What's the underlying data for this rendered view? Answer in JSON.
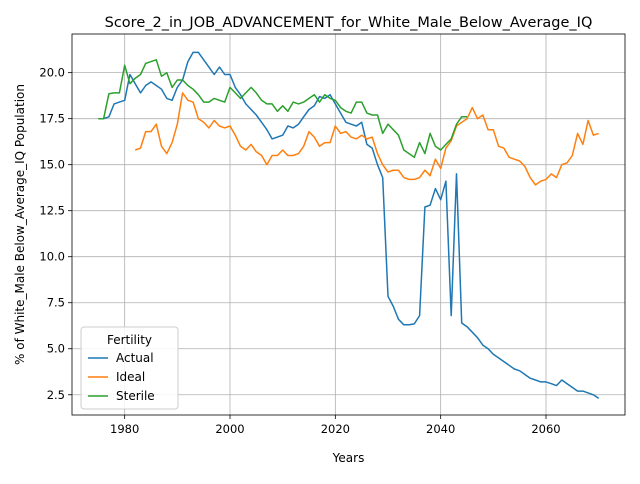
{
  "chart_data": {
    "type": "line",
    "title": "Score_2_in_JOB_ADVANCEMENT_for_White_Male_Below_Average_IQ",
    "xlabel": "Years",
    "ylabel": "% of White_Male Below_Average_IQ Population",
    "xlim": [
      1970,
      2075
    ],
    "ylim": [
      1.4,
      22.1
    ],
    "xticks": [
      1980,
      2000,
      2020,
      2040,
      2060
    ],
    "yticks": [
      2.5,
      5.0,
      7.5,
      10.0,
      12.5,
      15.0,
      17.5,
      20.0
    ],
    "grid": true,
    "legend": {
      "title": "Fertility",
      "position": "lower-left"
    },
    "series": [
      {
        "name": "Actual",
        "color": "#1f77b4",
        "x": [
          1976,
          1977,
          1978,
          1979,
          1980,
          1981,
          1982,
          1983,
          1984,
          1985,
          1986,
          1987,
          1988,
          1989,
          1990,
          1991,
          1992,
          1993,
          1994,
          1995,
          1996,
          1997,
          1998,
          1999,
          2000,
          2001,
          2002,
          2003,
          2004,
          2005,
          2006,
          2007,
          2008,
          2009,
          2010,
          2011,
          2012,
          2013,
          2014,
          2015,
          2016,
          2017,
          2018,
          2019,
          2020,
          2021,
          2022,
          2023,
          2024,
          2025,
          2026,
          2027,
          2028,
          2029,
          2030,
          2031,
          2032,
          2033,
          2034,
          2035,
          2036,
          2037,
          2038,
          2039,
          2040,
          2041,
          2042,
          2043,
          2044,
          2045,
          2046,
          2047,
          2048,
          2049,
          2050,
          2051,
          2052,
          2053,
          2054,
          2055,
          2056,
          2057,
          2058,
          2059,
          2060,
          2061,
          2062,
          2063,
          2064,
          2065,
          2066,
          2067,
          2068,
          2069,
          2070
        ],
        "y": [
          17.5,
          17.6,
          18.3,
          18.4,
          18.5,
          19.9,
          19.4,
          18.9,
          19.3,
          19.5,
          19.3,
          19.1,
          18.6,
          18.5,
          19.2,
          19.6,
          20.6,
          21.1,
          21.1,
          20.7,
          20.3,
          19.9,
          20.3,
          19.9,
          19.9,
          19.2,
          18.8,
          18.3,
          18.0,
          17.7,
          17.3,
          16.9,
          16.4,
          16.5,
          16.6,
          17.1,
          17.0,
          17.2,
          17.6,
          18.0,
          18.2,
          18.7,
          18.6,
          18.8,
          18.3,
          17.8,
          17.3,
          17.2,
          17.1,
          17.3,
          16.1,
          15.9,
          15.0,
          14.3,
          7.85,
          7.3,
          6.6,
          6.3,
          6.3,
          6.35,
          6.8,
          12.7,
          12.8,
          13.7,
          13.1,
          14.1,
          6.8,
          14.5,
          6.4,
          6.2,
          5.9,
          5.6,
          5.2,
          5.0,
          4.7,
          4.5,
          4.3,
          4.1,
          3.9,
          3.8,
          3.6,
          3.4,
          3.3,
          3.2,
          3.2,
          3.1,
          3.0,
          3.3,
          3.1,
          2.9,
          2.7,
          2.7,
          2.6,
          2.5,
          2.3
        ]
      },
      {
        "name": "Ideal",
        "color": "#ff7f0e",
        "x": [
          1982,
          1983,
          1984,
          1985,
          1986,
          1987,
          1988,
          1989,
          1990,
          1991,
          1992,
          1993,
          1994,
          1995,
          1996,
          1997,
          1998,
          1999,
          2000,
          2001,
          2002,
          2003,
          2004,
          2005,
          2006,
          2007,
          2008,
          2009,
          2010,
          2011,
          2012,
          2013,
          2014,
          2015,
          2016,
          2017,
          2018,
          2019,
          2020,
          2021,
          2022,
          2023,
          2024,
          2025,
          2026,
          2027,
          2028,
          2029,
          2030,
          2031,
          2032,
          2033,
          2034,
          2035,
          2036,
          2037,
          2038,
          2039,
          2040,
          2041,
          2042,
          2043,
          2044,
          2045,
          2046,
          2047,
          2048,
          2049,
          2050,
          2051,
          2052,
          2053,
          2054,
          2055,
          2056,
          2057,
          2058,
          2059,
          2060,
          2061,
          2062,
          2063,
          2064,
          2065,
          2066,
          2067,
          2068,
          2069,
          2070
        ],
        "y": [
          15.8,
          15.9,
          16.8,
          16.8,
          17.2,
          16.0,
          15.6,
          16.2,
          17.2,
          18.9,
          18.5,
          18.4,
          17.5,
          17.3,
          17.0,
          17.4,
          17.1,
          17.0,
          17.1,
          16.6,
          16.0,
          15.8,
          16.1,
          15.7,
          15.5,
          15.0,
          15.5,
          15.5,
          15.8,
          15.5,
          15.5,
          15.6,
          16.0,
          16.8,
          16.5,
          16.0,
          16.2,
          16.2,
          17.1,
          16.7,
          16.8,
          16.5,
          16.4,
          16.6,
          16.4,
          16.5,
          15.6,
          15.0,
          14.6,
          14.7,
          14.7,
          14.3,
          14.2,
          14.2,
          14.3,
          14.7,
          14.4,
          15.3,
          14.8,
          15.9,
          16.3,
          17.1,
          17.3,
          17.5,
          18.1,
          17.5,
          17.7,
          16.9,
          16.9,
          16.0,
          15.9,
          15.4,
          15.3,
          15.2,
          14.9,
          14.3,
          13.9,
          14.1,
          14.2,
          14.5,
          14.3,
          15.0,
          15.1,
          15.5,
          16.7,
          16.1,
          17.4,
          16.6,
          16.7
        ]
      },
      {
        "name": "Sterile",
        "color": "#2ca02c",
        "x": [
          1975,
          1976,
          1977,
          1978,
          1979,
          1980,
          1981,
          1982,
          1983,
          1984,
          1985,
          1986,
          1987,
          1988,
          1989,
          1990,
          1991,
          1992,
          1993,
          1994,
          1995,
          1996,
          1997,
          1998,
          1999,
          2000,
          2001,
          2002,
          2003,
          2004,
          2005,
          2006,
          2007,
          2008,
          2009,
          2010,
          2011,
          2012,
          2013,
          2014,
          2015,
          2016,
          2017,
          2018,
          2019,
          2020,
          2021,
          2022,
          2023,
          2024,
          2025,
          2026,
          2027,
          2028,
          2029,
          2030,
          2031,
          2032,
          2033,
          2034,
          2035,
          2036,
          2037,
          2038,
          2039,
          2040,
          2041,
          2042,
          2043,
          2044,
          2045
        ],
        "y": [
          17.5,
          17.5,
          18.85,
          18.9,
          18.9,
          20.4,
          19.4,
          19.7,
          19.9,
          20.5,
          20.6,
          20.7,
          19.8,
          20.0,
          19.2,
          19.6,
          19.6,
          19.3,
          19.1,
          18.8,
          18.4,
          18.4,
          18.6,
          18.5,
          18.4,
          19.2,
          18.9,
          18.6,
          18.9,
          19.2,
          18.9,
          18.5,
          18.3,
          18.3,
          17.9,
          18.2,
          17.9,
          18.4,
          18.3,
          18.4,
          18.6,
          18.8,
          18.4,
          18.8,
          18.6,
          18.5,
          18.1,
          17.9,
          17.8,
          18.4,
          18.4,
          17.8,
          17.7,
          17.7,
          16.7,
          17.2,
          16.9,
          16.6,
          15.8,
          15.6,
          15.4,
          16.2,
          15.6,
          16.7,
          16.0,
          15.8,
          16.1,
          16.4,
          17.2,
          17.6,
          17.6
        ]
      }
    ]
  }
}
